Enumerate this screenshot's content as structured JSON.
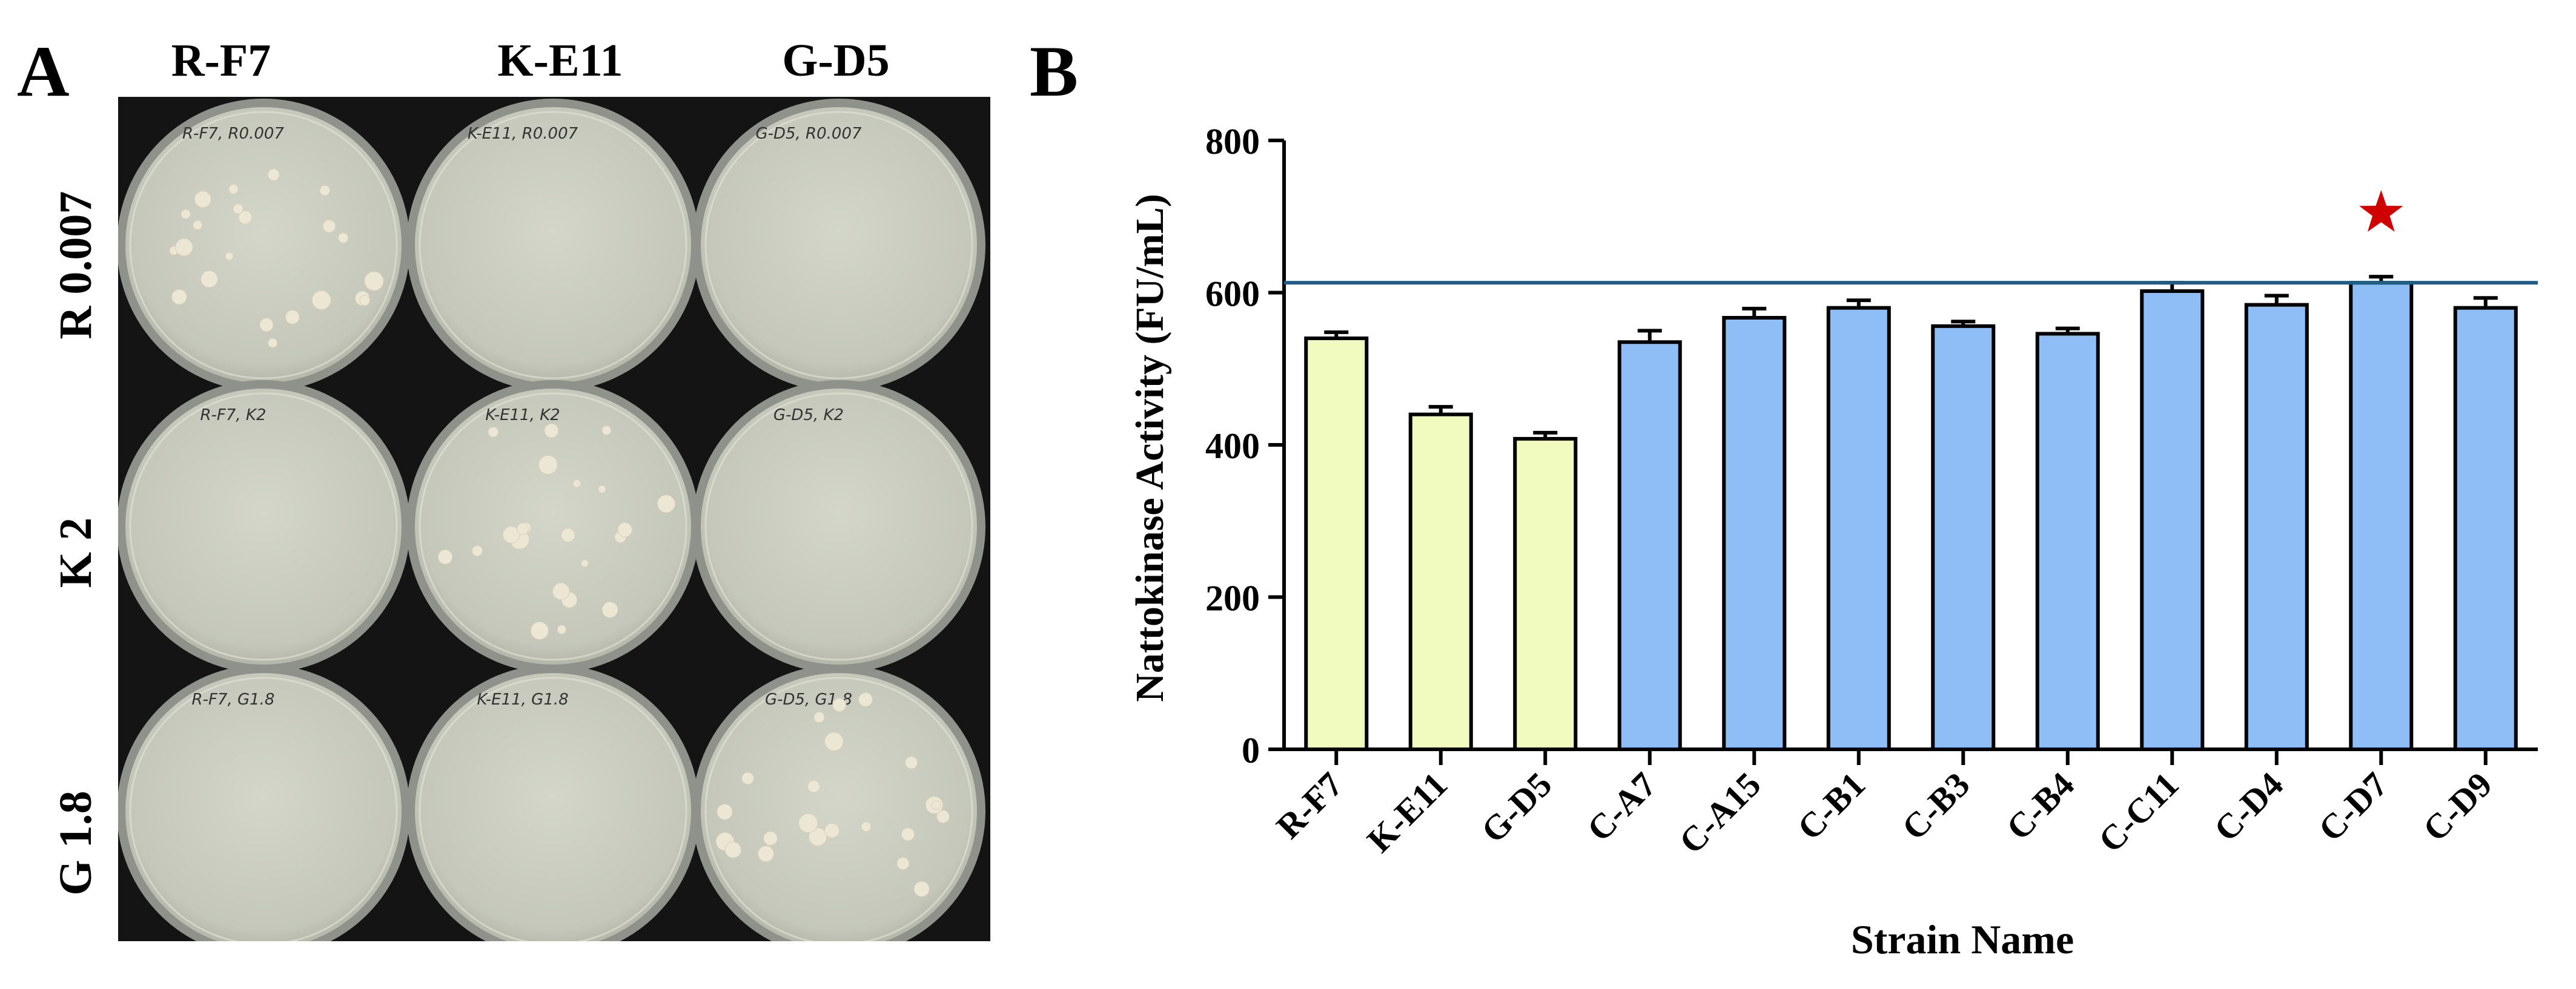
{
  "panels": {
    "a_label": "A",
    "b_label": "B"
  },
  "plate_photo": {
    "columns": [
      "R-F7",
      "K-E11",
      "G-D5"
    ],
    "rows": [
      "R 0.007",
      "K 2",
      "G 1.8"
    ],
    "handwritten_labels": [
      [
        "R-F7, R0.007",
        "K-E11, R0.007",
        "G-D5, R0.007"
      ],
      [
        "R-F7, K2",
        "K-E11, K2",
        "G-D5, K2"
      ],
      [
        "R-F7, G1.8",
        "K-E11, G1.8",
        "G-D5, G1.8"
      ]
    ],
    "colonies_present": [
      [
        true,
        false,
        false
      ],
      [
        false,
        true,
        false
      ],
      [
        false,
        false,
        true
      ]
    ]
  },
  "chart_data": {
    "type": "bar",
    "categories": [
      "R-F7",
      "K-E11",
      "G-D5",
      "C-A7",
      "C-A15",
      "C-B1",
      "C-B3",
      "C-B4",
      "C-C11",
      "C-D4",
      "C-D7",
      "C-D9"
    ],
    "values": [
      540,
      440,
      408,
      535,
      567,
      580,
      556,
      546,
      602,
      584,
      613,
      580
    ],
    "errors": [
      8,
      10,
      8,
      15,
      12,
      10,
      6,
      7,
      11,
      12,
      8,
      13
    ],
    "bar_colors": [
      "#f1fbbf",
      "#f1fbbf",
      "#f1fbbf",
      "#8fbdf5",
      "#8fbdf5",
      "#8fbdf5",
      "#8fbdf5",
      "#8fbdf5",
      "#8fbdf5",
      "#8fbdf5",
      "#8fbdf5",
      "#8fbdf5"
    ],
    "xlabel": "Strain Name",
    "ylabel": "Nattokinase Activity (FU/mL)",
    "ylim": [
      0,
      800
    ],
    "yticks": [
      "0",
      "200",
      "400",
      "600",
      "800"
    ],
    "reference_line": 613,
    "reference_line_color": "#1f5f86",
    "highlight_category": "C-D7",
    "highlight_marker": "red-star",
    "highlight_color": "#d00000",
    "grid": false
  }
}
